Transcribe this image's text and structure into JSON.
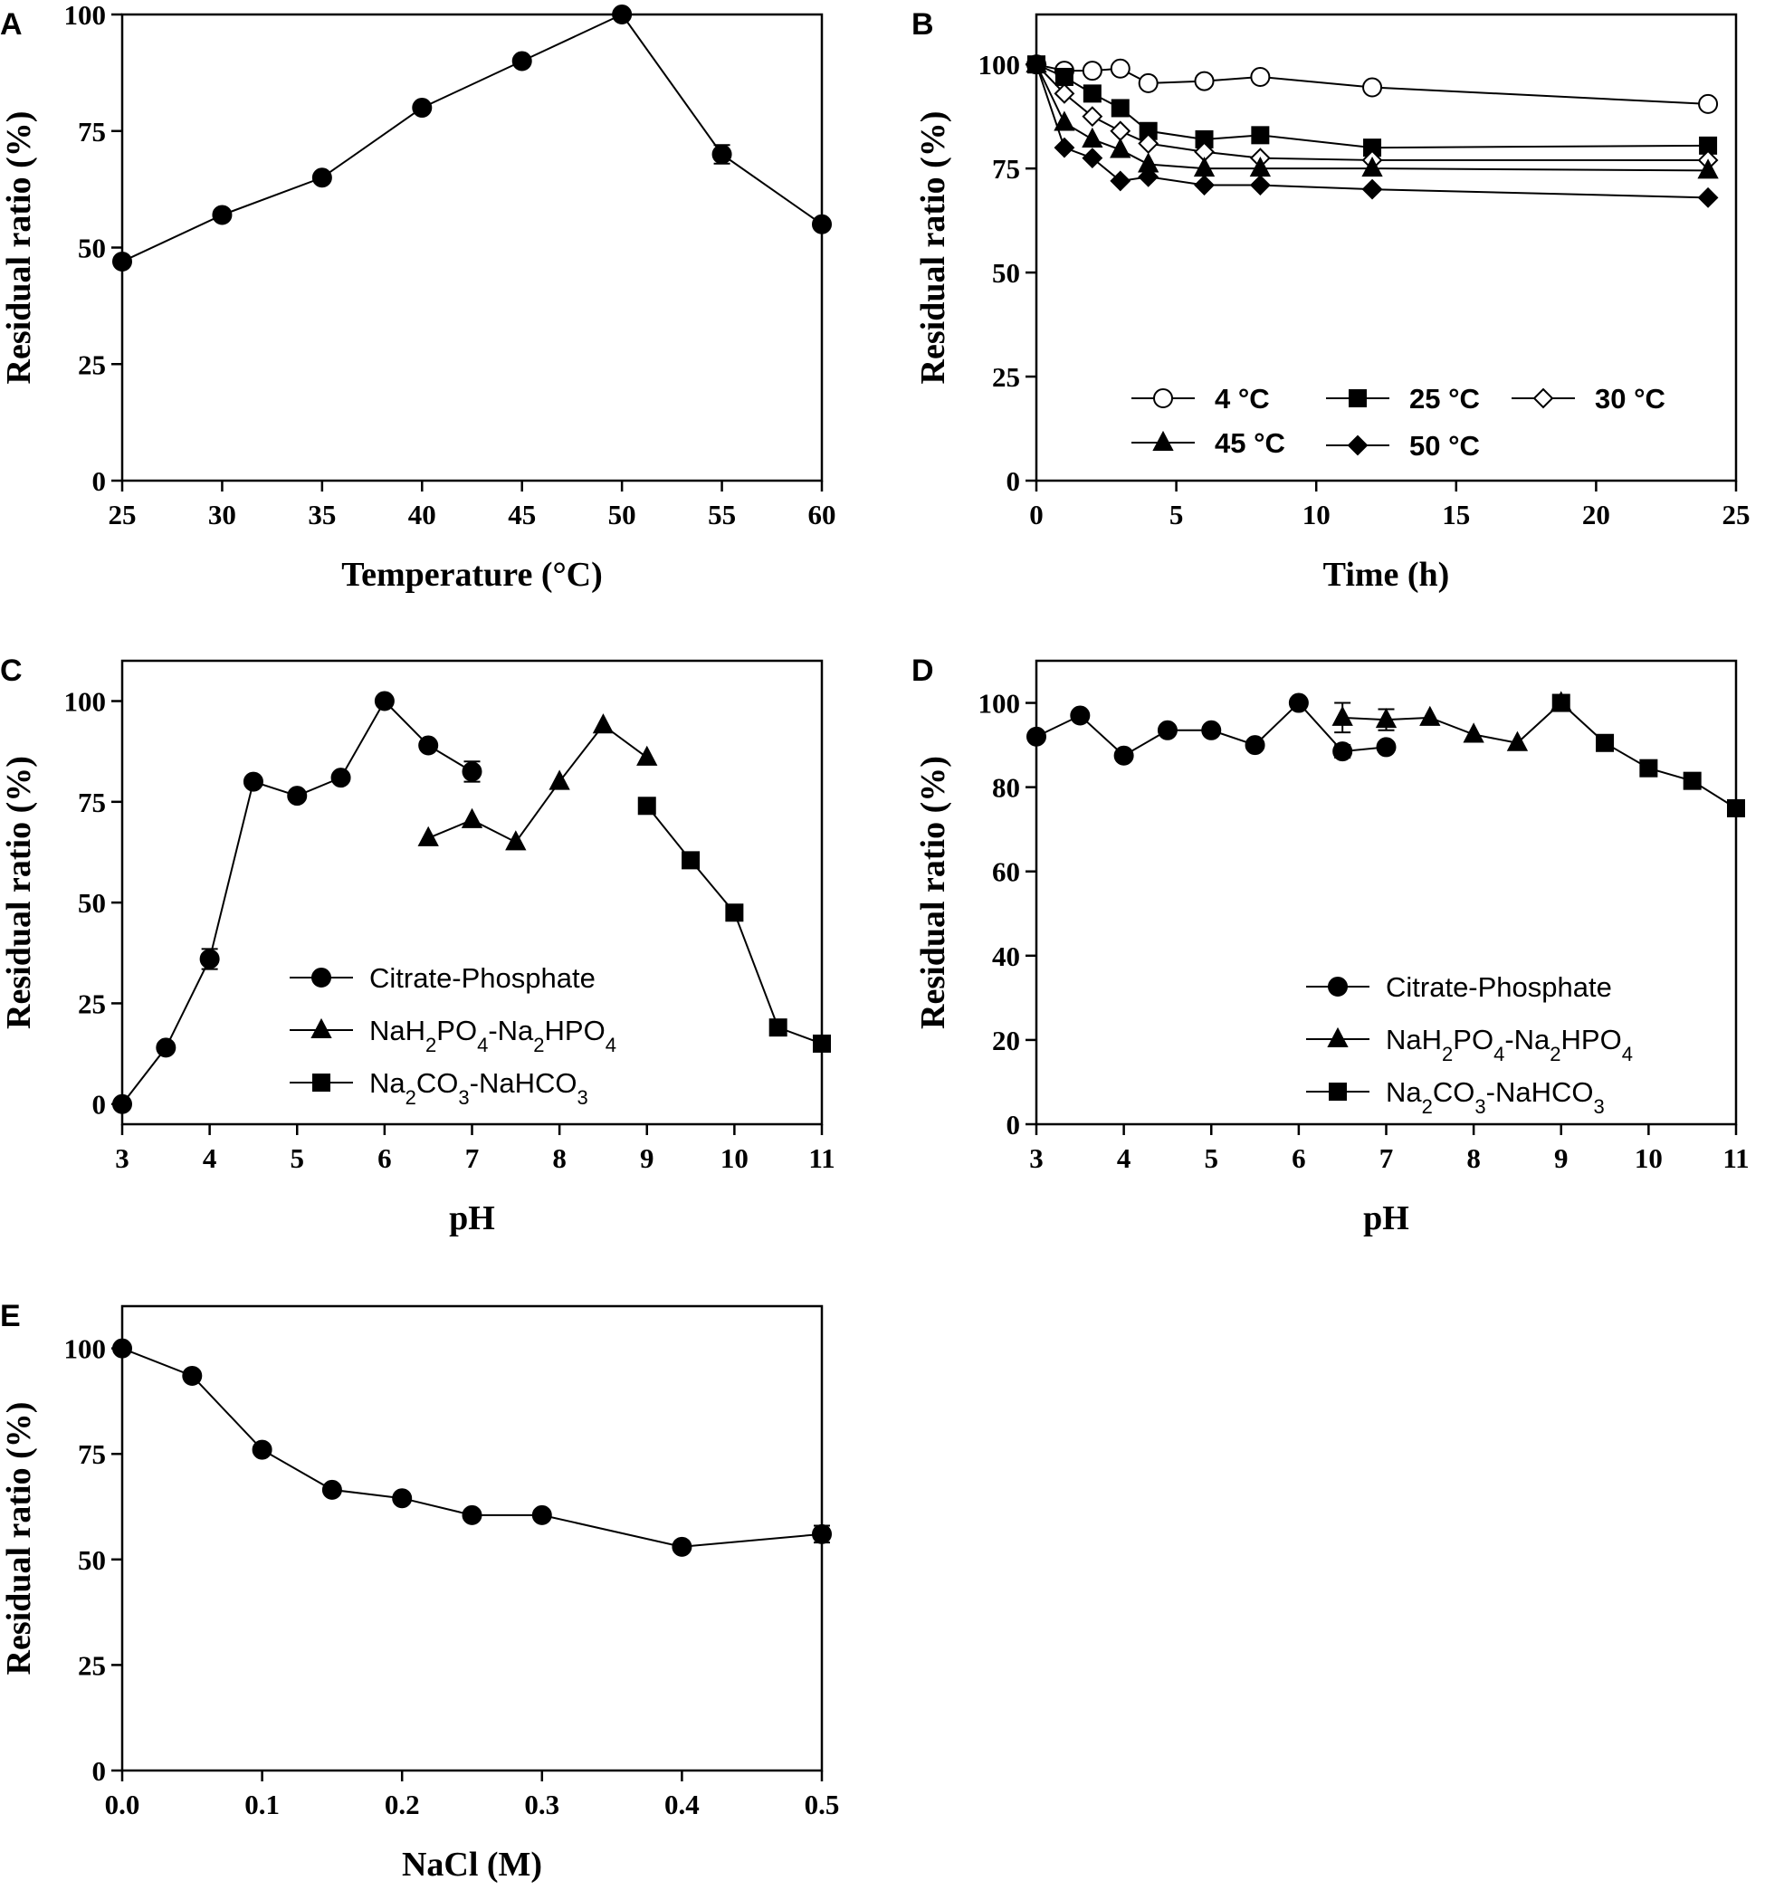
{
  "chart_data": [
    {
      "panel": "A",
      "type": "line",
      "xlabel": "Temperature (°C)",
      "ylabel": "Residual ratio (%)",
      "xlim": [
        25,
        60
      ],
      "ylim": [
        0,
        100
      ],
      "xticks": [
        25,
        30,
        35,
        40,
        45,
        50,
        55,
        60
      ],
      "yticks": [
        0,
        25,
        50,
        75,
        100
      ],
      "legend": null,
      "series": [
        {
          "name": "",
          "marker": "circle",
          "fill": "filled",
          "x": [
            25,
            30,
            35,
            40,
            45,
            50,
            55,
            60
          ],
          "values": [
            47,
            57,
            65,
            80,
            90,
            100,
            70,
            55
          ],
          "errors": [
            0,
            0,
            0,
            0,
            0,
            0,
            2,
            0
          ]
        }
      ]
    },
    {
      "panel": "B",
      "type": "line",
      "xlabel": "Time (h)",
      "ylabel": "Residual ratio (%)",
      "xlim": [
        0,
        25
      ],
      "ylim": [
        0,
        112
      ],
      "xticks": [
        0,
        5,
        10,
        15,
        20,
        25
      ],
      "yticks": [
        0,
        25,
        50,
        75,
        100
      ],
      "legend": "bottom",
      "series": [
        {
          "name": "4 °C",
          "marker": "circle",
          "fill": "open",
          "x": [
            0,
            1,
            2,
            3,
            4,
            6,
            8,
            12,
            24
          ],
          "values": [
            100,
            98.5,
            98.5,
            99,
            95.5,
            96,
            97,
            94.5,
            90.5
          ]
        },
        {
          "name": "25 °C",
          "marker": "square",
          "fill": "filled",
          "x": [
            0,
            1,
            2,
            3,
            4,
            6,
            8,
            12,
            24
          ],
          "values": [
            100,
            97,
            93,
            89.5,
            84,
            82,
            83,
            80,
            80.5
          ]
        },
        {
          "name": "30 °C",
          "marker": "diamond",
          "fill": "open",
          "x": [
            0,
            1,
            2,
            3,
            4,
            6,
            8,
            12,
            24
          ],
          "values": [
            100,
            93,
            87.5,
            84,
            81,
            79,
            77.5,
            77,
            77
          ]
        },
        {
          "name": "45 °C",
          "marker": "triangle",
          "fill": "filled",
          "x": [
            0,
            1,
            2,
            3,
            4,
            6,
            8,
            12,
            24
          ],
          "values": [
            100,
            86,
            82,
            79.5,
            76,
            75,
            75,
            75,
            74.5
          ]
        },
        {
          "name": "50 °C",
          "marker": "diamond",
          "fill": "filled",
          "x": [
            0,
            1,
            2,
            3,
            4,
            6,
            8,
            12,
            24
          ],
          "values": [
            100,
            80,
            77.5,
            72,
            73,
            71,
            71,
            70,
            68
          ]
        }
      ]
    },
    {
      "panel": "C",
      "type": "line",
      "xlabel": "pH",
      "ylabel": "Residual ratio (%)",
      "xlim": [
        3,
        11
      ],
      "ylim": [
        -5,
        110
      ],
      "xticks": [
        3,
        4,
        5,
        6,
        7,
        8,
        9,
        10,
        11
      ],
      "yticks": [
        0,
        25,
        50,
        75,
        100
      ],
      "legend": "lower-left",
      "series": [
        {
          "name": "Citrate-Phosphate",
          "marker": "circle",
          "fill": "filled",
          "x": [
            3,
            3.5,
            4,
            4.5,
            5,
            5.5,
            6,
            6.5,
            7
          ],
          "values": [
            0,
            14,
            36,
            80,
            76.5,
            81,
            100,
            89,
            82.5
          ],
          "errors": [
            0,
            0,
            2.5,
            0,
            0,
            0,
            0,
            0,
            2.5
          ]
        },
        {
          "name": "NaH2PO4-Na2HPO4",
          "marker": "triangle",
          "fill": "filled",
          "x": [
            6.5,
            7,
            7.5,
            8,
            8.5,
            9
          ],
          "values": [
            66,
            70.5,
            65,
            80,
            94,
            86
          ]
        },
        {
          "name": "Na2CO3-NaHCO3",
          "marker": "square",
          "fill": "filled",
          "x": [
            9,
            9.5,
            10,
            10.5,
            11
          ],
          "values": [
            74,
            60.5,
            47.5,
            19,
            15
          ]
        }
      ]
    },
    {
      "panel": "D",
      "type": "line",
      "xlabel": "pH",
      "ylabel": "Residual ratio (%)",
      "xlim": [
        3,
        11
      ],
      "ylim": [
        0,
        110
      ],
      "xticks": [
        3,
        4,
        5,
        6,
        7,
        8,
        9,
        10,
        11
      ],
      "yticks": [
        0,
        20,
        40,
        60,
        80,
        100
      ],
      "legend": "lower-left",
      "series": [
        {
          "name": "Citrate-Phosphate",
          "marker": "circle",
          "fill": "filled",
          "x": [
            3,
            3.5,
            4,
            4.5,
            5,
            5.5,
            6,
            6.5,
            7
          ],
          "values": [
            92,
            97,
            87.5,
            93.5,
            93.5,
            90,
            100,
            88.5,
            89.5
          ],
          "errors": [
            0,
            0,
            0,
            0,
            0,
            0,
            0,
            1.5,
            0
          ]
        },
        {
          "name": "NaH2PO4-Na2HPO4",
          "marker": "triangle",
          "fill": "filled",
          "x": [
            6.5,
            7,
            7.5,
            8,
            8.5,
            9
          ],
          "values": [
            96.5,
            96,
            96.5,
            92.5,
            90.5,
            100
          ],
          "errors": [
            3.5,
            2.5,
            0,
            0,
            0,
            0
          ]
        },
        {
          "name": "Na2CO3-NaHCO3",
          "marker": "square",
          "fill": "filled",
          "x": [
            9,
            9.5,
            10,
            10.5,
            11
          ],
          "values": [
            100,
            90.5,
            84.5,
            81.5,
            75
          ]
        }
      ]
    },
    {
      "panel": "E",
      "type": "line",
      "xlabel": "NaCl (M)",
      "ylabel": "Residual ratio (%)",
      "xlim": [
        0,
        0.5
      ],
      "ylim": [
        0,
        110
      ],
      "xticks": [
        "0.0",
        "0.1",
        "0.2",
        "0.3",
        "0.4",
        "0.5"
      ],
      "yticks": [
        0,
        25,
        50,
        75,
        100
      ],
      "legend": null,
      "series": [
        {
          "name": "",
          "marker": "circle",
          "fill": "filled",
          "x": [
            0,
            0.05,
            0.1,
            0.15,
            0.2,
            0.25,
            0.3,
            0.4,
            0.5
          ],
          "values": [
            100,
            93.5,
            76,
            66.5,
            64.5,
            60.5,
            60.5,
            53,
            56
          ],
          "errors": [
            0,
            0,
            0,
            0,
            0,
            0,
            0,
            0,
            2
          ]
        }
      ]
    }
  ]
}
